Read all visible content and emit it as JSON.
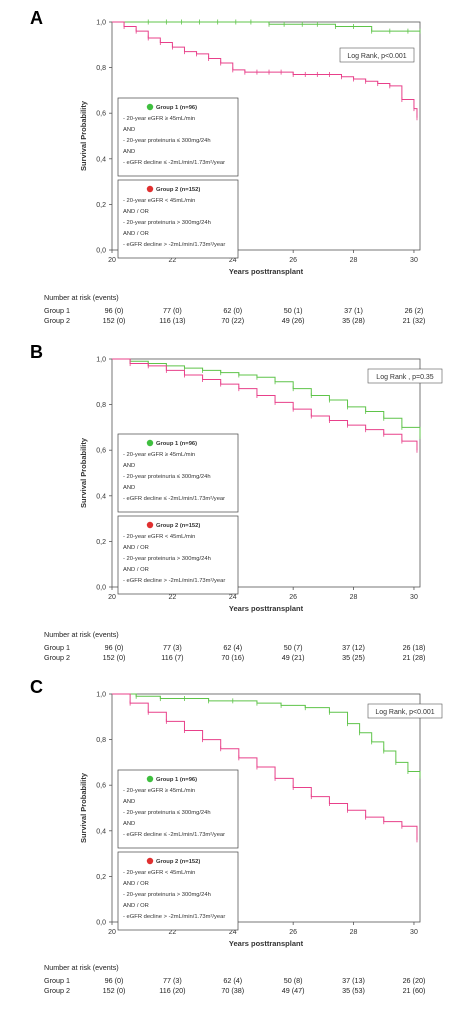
{
  "chart_data": [
    {
      "panel": "A",
      "type": "line",
      "xlabel": "Years posttransplant",
      "ylabel": "Survival Probability",
      "xlim": [
        20,
        30.2
      ],
      "ylim": [
        0,
        1.0
      ],
      "x_ticks": [
        "20",
        "22",
        "24",
        "26",
        "28",
        "30"
      ],
      "y_ticks": [
        "0,0",
        "0,2",
        "0,4",
        "0,6",
        "0,8",
        "1,0"
      ],
      "logrank": "Log Rank, p<0.001",
      "legend": {
        "groups": [
          {
            "title": "Group 1 (n=96)",
            "color": "#3fbf3f",
            "lines": [
              "- 20-year eGFR ≥ 45mL/min",
              "AND",
              "- 20-year proteinuria ≤ 300mg/24h",
              "AND",
              "- eGFR decline ≤ -2mL/min/1.73m²/year"
            ]
          },
          {
            "title": "Group 2 (n=152)",
            "color": "#e03030",
            "lines": [
              "- 20-year eGFR < 45mL/min",
              "AND / OR",
              "- 20-year proteinuria > 300mg/24h",
              "AND / OR",
              "- eGFR decline > -2mL/min/1.73m²/year"
            ]
          }
        ]
      },
      "series": [
        {
          "name": "Group 1",
          "color": "#5fc44a",
          "x": [
            20,
            21.2,
            21.8,
            22.3,
            22.9,
            23.5,
            24.1,
            24.6,
            25.2,
            25.7,
            26.3,
            26.8,
            27.4,
            28.0,
            28.6,
            29.2,
            29.8,
            30.2
          ],
          "y": [
            1.0,
            1.0,
            1.0,
            1.0,
            1.0,
            1.0,
            1.0,
            1.0,
            0.99,
            0.99,
            0.99,
            0.99,
            0.98,
            0.98,
            0.96,
            0.96,
            0.96,
            0.96
          ]
        },
        {
          "name": "Group 2",
          "color": "#e8408a",
          "x": [
            20,
            20.4,
            20.8,
            21.2,
            21.6,
            22.0,
            22.4,
            22.8,
            23.2,
            23.6,
            24.0,
            24.4,
            24.8,
            25.2,
            25.6,
            26.0,
            26.4,
            26.8,
            27.2,
            27.6,
            28.0,
            28.4,
            28.8,
            29.2,
            29.6,
            30.0,
            30.1
          ],
          "y": [
            1.0,
            0.98,
            0.96,
            0.93,
            0.91,
            0.89,
            0.87,
            0.86,
            0.84,
            0.82,
            0.79,
            0.78,
            0.78,
            0.78,
            0.78,
            0.77,
            0.77,
            0.77,
            0.77,
            0.76,
            0.75,
            0.74,
            0.73,
            0.72,
            0.66,
            0.62,
            0.58
          ]
        }
      ],
      "risk_table": {
        "header": "Number at risk (events)",
        "rows": [
          {
            "label": "Group 1",
            "values": [
              "96 (0)",
              "77 (0)",
              "62 (0)",
              "50 (1)",
              "37 (1)",
              "26 (2)"
            ]
          },
          {
            "label": "Group 2",
            "values": [
              "152 (0)",
              "116 (13)",
              "70 (22)",
              "49 (26)",
              "35 (28)",
              "21 (32)"
            ]
          }
        ]
      }
    },
    {
      "panel": "B",
      "type": "line",
      "xlabel": "Years posttransplant",
      "ylabel": "Survival Probability",
      "xlim": [
        20,
        30.2
      ],
      "ylim": [
        0,
        1.0
      ],
      "x_ticks": [
        "20",
        "22",
        "24",
        "26",
        "28",
        "30"
      ],
      "y_ticks": [
        "0,0",
        "0,2",
        "0,4",
        "0,6",
        "0,8",
        "1,0"
      ],
      "logrank": "Log Rank , p=0.35",
      "legend": {
        "groups": [
          {
            "title": "Group 1 (n=96)",
            "color": "#3fbf3f",
            "lines": [
              "- 20-year eGFR ≥ 45mL/min",
              "AND",
              "- 20-year proteinuria ≤ 300mg/24h",
              "AND",
              "- eGFR decline ≤ -2mL/min/1.73m²/year"
            ]
          },
          {
            "title": "Group 2 (n=152)",
            "color": "#e03030",
            "lines": [
              "- 20-year eGFR < 45mL/min",
              "AND / OR",
              "- 20-year proteinuria > 300mg/24h",
              "AND / OR",
              "- eGFR decline > -2mL/min/1.73m²/year"
            ]
          }
        ]
      },
      "series": [
        {
          "name": "Group 1",
          "color": "#5fc44a",
          "x": [
            20,
            20.6,
            21.2,
            21.8,
            22.4,
            23.0,
            23.6,
            24.2,
            24.8,
            25.4,
            26.0,
            26.6,
            27.2,
            27.8,
            28.4,
            29.0,
            29.6,
            30.2
          ],
          "y": [
            1.0,
            0.99,
            0.98,
            0.97,
            0.96,
            0.95,
            0.94,
            0.93,
            0.92,
            0.9,
            0.87,
            0.84,
            0.82,
            0.79,
            0.77,
            0.74,
            0.7,
            0.66
          ]
        },
        {
          "name": "Group 2",
          "color": "#e8408a",
          "x": [
            20,
            20.6,
            21.2,
            21.8,
            22.4,
            23.0,
            23.6,
            24.2,
            24.8,
            25.4,
            26.0,
            26.6,
            27.2,
            27.8,
            28.4,
            29.0,
            29.6,
            30.1
          ],
          "y": [
            1.0,
            0.98,
            0.97,
            0.95,
            0.93,
            0.91,
            0.89,
            0.87,
            0.84,
            0.81,
            0.78,
            0.75,
            0.73,
            0.71,
            0.69,
            0.67,
            0.64,
            0.6
          ]
        }
      ],
      "risk_table": {
        "header": "Number at risk (events)",
        "rows": [
          {
            "label": "Group 1",
            "values": [
              "96 (0)",
              "77 (3)",
              "62 (4)",
              "50 (7)",
              "37 (12)",
              "26 (18)"
            ]
          },
          {
            "label": "Group 2",
            "values": [
              "152 (0)",
              "116 (7)",
              "70 (16)",
              "49 (21)",
              "35 (25)",
              "21 (28)"
            ]
          }
        ]
      }
    },
    {
      "panel": "C",
      "type": "line",
      "xlabel": "Years posttransplant",
      "ylabel": "Survival Probability",
      "xlim": [
        20,
        30.2
      ],
      "ylim": [
        0,
        1.0
      ],
      "x_ticks": [
        "20",
        "22",
        "24",
        "26",
        "28",
        "30"
      ],
      "y_ticks": [
        "0,0",
        "0,2",
        "0,4",
        "0,6",
        "0,8",
        "1,0"
      ],
      "logrank": "Log Rank, p<0.001",
      "legend": {
        "groups": [
          {
            "title": "Group 1 (n=96)",
            "color": "#3fbf3f",
            "lines": [
              "- 20-year eGFR ≥ 45mL/min",
              "AND",
              "- 20-year proteinuria ≤ 300mg/24h",
              "AND",
              "- eGFR decline ≤ -2mL/min/1.73m²/year"
            ]
          },
          {
            "title": "Group 2 (n=152)",
            "color": "#e03030",
            "lines": [
              "- 20-year eGFR < 45mL/min",
              "AND / OR",
              "- 20-year proteinuria > 300mg/24h",
              "AND / OR",
              "- eGFR decline > -2mL/min/1.73m²/year"
            ]
          }
        ]
      },
      "series": [
        {
          "name": "Group 1",
          "color": "#5fc44a",
          "x": [
            20,
            20.8,
            21.6,
            22.4,
            23.2,
            24.0,
            24.8,
            25.6,
            26.4,
            27.2,
            27.8,
            28.2,
            28.6,
            29.0,
            29.4,
            29.8,
            30.2
          ],
          "y": [
            1.0,
            0.99,
            0.98,
            0.98,
            0.97,
            0.97,
            0.96,
            0.95,
            0.94,
            0.92,
            0.87,
            0.83,
            0.79,
            0.75,
            0.7,
            0.66,
            0.64
          ]
        },
        {
          "name": "Group 2",
          "color": "#e8408a",
          "x": [
            20,
            20.6,
            21.2,
            21.8,
            22.4,
            23.0,
            23.6,
            24.2,
            24.8,
            25.4,
            26.0,
            26.6,
            27.2,
            27.8,
            28.4,
            29.0,
            29.6,
            30.1
          ],
          "y": [
            1.0,
            0.96,
            0.92,
            0.88,
            0.84,
            0.8,
            0.76,
            0.72,
            0.68,
            0.63,
            0.59,
            0.55,
            0.52,
            0.49,
            0.46,
            0.44,
            0.42,
            0.36
          ]
        }
      ],
      "risk_table": {
        "header": "Number at risk (events)",
        "rows": [
          {
            "label": "Group 1",
            "values": [
              "96 (0)",
              "77 (3)",
              "62 (4)",
              "50 (8)",
              "37 (13)",
              "26 (20)"
            ]
          },
          {
            "label": "Group 2",
            "values": [
              "152 (0)",
              "116 (20)",
              "70 (38)",
              "49 (47)",
              "35 (53)",
              "21 (60)"
            ]
          }
        ]
      }
    }
  ]
}
